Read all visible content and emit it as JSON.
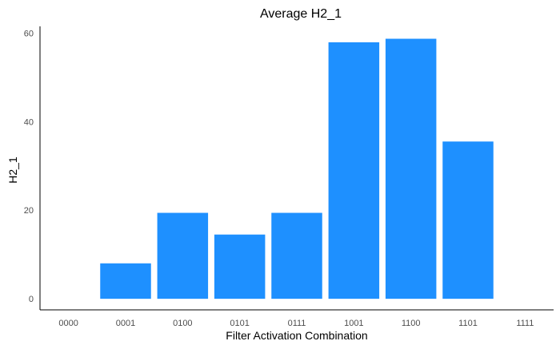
{
  "chart_data": {
    "type": "bar",
    "title": "Average H2_1",
    "xlabel": "Filter Activation Combination",
    "ylabel": "H2_1",
    "categories": [
      "0000",
      "0001",
      "0100",
      "0101",
      "0111",
      "1001",
      "1100",
      "1101",
      "1111"
    ],
    "values": [
      0,
      8,
      19.4,
      14.5,
      19.4,
      57.9,
      58.7,
      35.5,
      0
    ],
    "yticks": [
      0,
      20,
      40,
      60
    ],
    "ylim": [
      -2.5,
      61.5
    ],
    "grid": false,
    "bar_color": "#1E90FF"
  }
}
